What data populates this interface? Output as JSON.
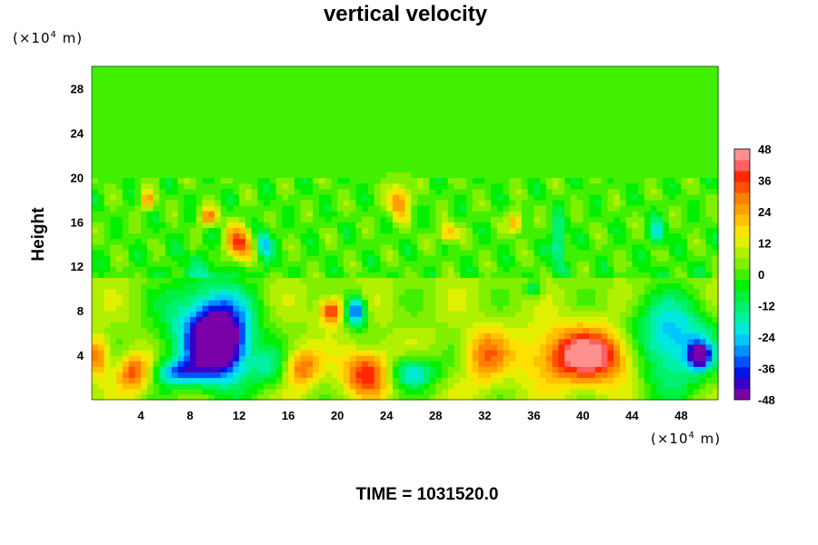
{
  "chart_data": {
    "type": "heatmap",
    "title": "vertical velocity",
    "ylabel": "Height",
    "xlabel": "",
    "x_unit": {
      "prefix": "(×10",
      "exp": "4",
      "suffix": " m)"
    },
    "y_unit": {
      "prefix": "(×10",
      "exp": "4",
      "suffix": " m)"
    },
    "xlim": [
      0,
      51
    ],
    "ylim": [
      0,
      30
    ],
    "xticks": [
      4,
      8,
      12,
      16,
      20,
      24,
      28,
      32,
      36,
      40,
      44,
      48
    ],
    "yticks": [
      4,
      8,
      12,
      16,
      20,
      24,
      28
    ],
    "colorbar": {
      "ticks": [
        48,
        36,
        24,
        12,
        0,
        -12,
        -24,
        -36,
        -48
      ],
      "range": [
        -48,
        48
      ],
      "colors": [
        "#7a00a8",
        "#3a00c8",
        "#0014e8",
        "#0050ff",
        "#0090ff",
        "#00c8ff",
        "#00e8e0",
        "#00f0a8",
        "#00f070",
        "#00f040",
        "#00f000",
        "#40f000",
        "#80f000",
        "#b0f000",
        "#e0f000",
        "#ffe000",
        "#ffc000",
        "#ffa000",
        "#ff8000",
        "#ff5000",
        "#ff2800",
        "#ff6060",
        "#ff9090"
      ]
    },
    "features": [
      {
        "x": 2.5,
        "y": 18,
        "v": 0,
        "sx": 30,
        "sy": 1.2,
        "note": "band"
      },
      {
        "x": 10.5,
        "y": 5,
        "v": -48,
        "sx": 1.5,
        "sy": 2.2
      },
      {
        "x": 9.5,
        "y": 6.5,
        "v": -36,
        "sx": 2.5,
        "sy": 3.2
      },
      {
        "x": 21.5,
        "y": 8,
        "v": -42,
        "sx": 0.6,
        "sy": 1.0
      },
      {
        "x": 7,
        "y": 2.5,
        "v": -30,
        "sx": 1.5,
        "sy": 0.8
      },
      {
        "x": 26,
        "y": 2.5,
        "v": -30,
        "sx": 1.5,
        "sy": 1.0
      },
      {
        "x": 40.5,
        "y": 4,
        "v": 44,
        "sx": 3.2,
        "sy": 1.8
      },
      {
        "x": 47,
        "y": 5,
        "v": -38,
        "sx": 2.5,
        "sy": 2.8
      },
      {
        "x": 49.5,
        "y": 4,
        "v": -48,
        "sx": 0.6,
        "sy": 0.8
      },
      {
        "x": 3.5,
        "y": 2.5,
        "v": 30,
        "sx": 1.0,
        "sy": 1.2
      },
      {
        "x": 19.5,
        "y": 8,
        "v": 36,
        "sx": 0.7,
        "sy": 0.8
      },
      {
        "x": 22.5,
        "y": 2.5,
        "v": 36,
        "sx": 1.4,
        "sy": 1.4
      },
      {
        "x": 17,
        "y": 3,
        "v": 28,
        "sx": 1.0,
        "sy": 1.2
      },
      {
        "x": 32,
        "y": 4,
        "v": 22,
        "sx": 1.2,
        "sy": 1.8
      },
      {
        "x": 12,
        "y": 14,
        "v": 38,
        "sx": 0.8,
        "sy": 1.2
      },
      {
        "x": 25,
        "y": 18,
        "v": 30,
        "sx": 0.6,
        "sy": 1.2
      },
      {
        "x": 9.5,
        "y": 16.5,
        "v": 30,
        "sx": 0.5,
        "sy": 0.6
      },
      {
        "x": 29,
        "y": 15,
        "v": 26,
        "sx": 0.5,
        "sy": 0.6
      },
      {
        "x": 34.5,
        "y": 16,
        "v": 30,
        "sx": 0.4,
        "sy": 0.6
      },
      {
        "x": 14,
        "y": 14,
        "v": -26,
        "sx": 0.5,
        "sy": 1.0
      },
      {
        "x": 38,
        "y": 14,
        "v": -22,
        "sx": 0.4,
        "sy": 1.5
      },
      {
        "x": 46,
        "y": 15,
        "v": -22,
        "sx": 0.4,
        "sy": 0.8
      },
      {
        "x": 36,
        "y": 10,
        "v": -20,
        "sx": 0.5,
        "sy": 0.6
      },
      {
        "x": 0.5,
        "y": 4,
        "v": 26,
        "sx": 0.6,
        "sy": 1.2
      },
      {
        "x": 14.5,
        "y": 3,
        "v": -18,
        "sx": 1.2,
        "sy": 1.2
      },
      {
        "x": 4.5,
        "y": 18,
        "v": 26,
        "sx": 0.4,
        "sy": 0.6
      }
    ]
  },
  "time_label": "TIME = 1031520.0"
}
